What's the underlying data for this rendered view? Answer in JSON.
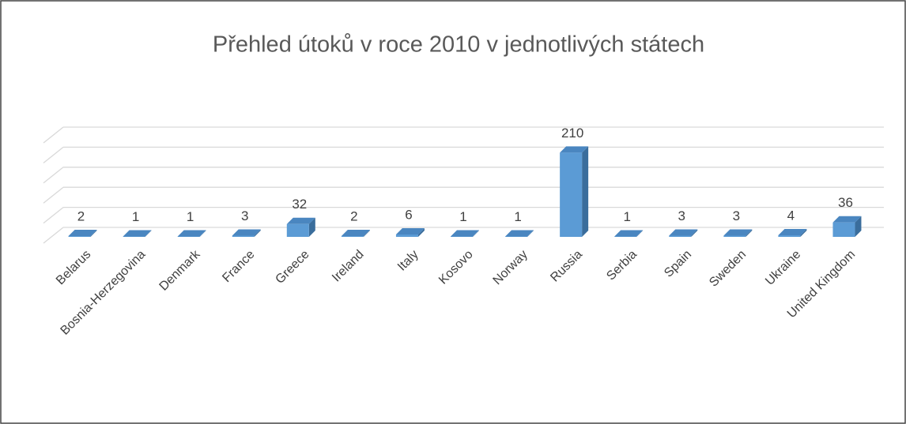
{
  "chart_data": {
    "type": "bar",
    "title": "Přehled útoků v roce 2010 v jednotlivých státech",
    "categories": [
      "Belarus",
      "Bosnia-Herzegovina",
      "Denmark",
      "France",
      "Greece",
      "Ireland",
      "Italy",
      "Kosovo",
      "Norway",
      "Russia",
      "Serbia",
      "Spain",
      "Sweden",
      "Ukraine",
      "United Kingdom"
    ],
    "values": [
      2,
      1,
      1,
      3,
      32,
      2,
      6,
      1,
      1,
      210,
      1,
      3,
      3,
      4,
      36
    ],
    "color": "#5b9bd5",
    "ylim": [
      0,
      250
    ],
    "yticks": [
      0,
      50,
      100,
      150,
      200,
      250
    ],
    "grid": true
  }
}
